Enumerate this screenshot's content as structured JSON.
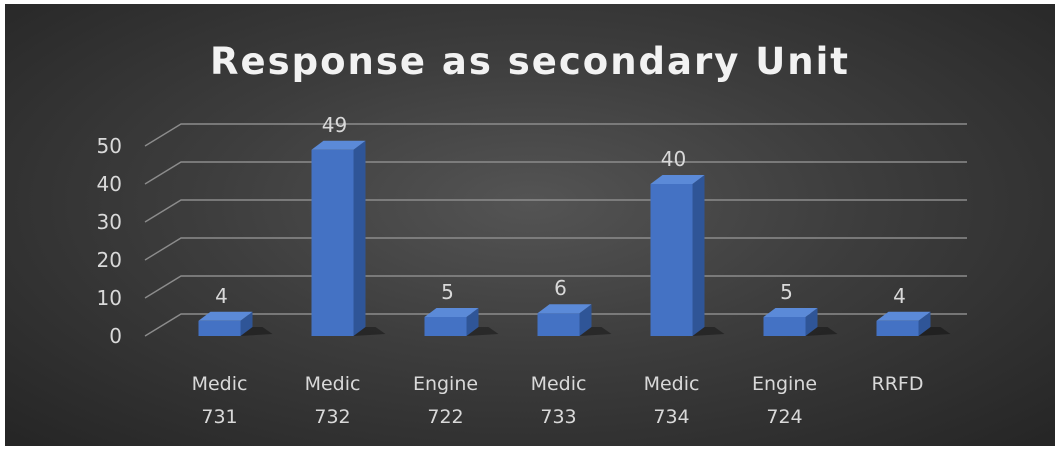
{
  "chart_data": {
    "type": "bar",
    "title": "Response as secondary Unit",
    "categories": [
      [
        "Medic",
        "731"
      ],
      [
        "Medic",
        "732"
      ],
      [
        "Engine",
        "722"
      ],
      [
        "Medic",
        "733"
      ],
      [
        "Medic",
        "734"
      ],
      [
        "Engine",
        "724"
      ],
      [
        "RRFD"
      ]
    ],
    "values": [
      4,
      49,
      5,
      6,
      40,
      5,
      4
    ],
    "data_labels": [
      "4",
      "49",
      "5",
      "6",
      "40",
      "5",
      "4"
    ],
    "ylim": [
      0,
      50
    ],
    "yticks": [
      "0",
      "10",
      "20",
      "30",
      "40",
      "50"
    ],
    "grid": true,
    "legend": "none",
    "style": "3d-column",
    "colors": {
      "bar_front": "#4472c4",
      "bar_side": "#2f5597",
      "bar_top": "#5b8ad8",
      "background": "#333333",
      "text": "#d9d9d9",
      "gridline": "#8c8c8c"
    }
  }
}
